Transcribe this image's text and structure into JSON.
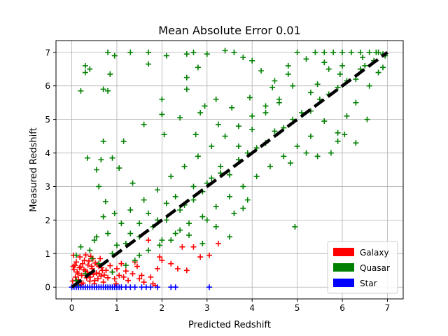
{
  "chart_data": {
    "type": "scatter",
    "title": "Mean Absolute Error 0.01",
    "xlabel": "Predicted Redshift",
    "ylabel": "Measured Redshift",
    "xlim": [
      -0.35,
      7.35
    ],
    "ylim": [
      -0.35,
      7.35
    ],
    "x_ticks": [
      0,
      1,
      2,
      3,
      4,
      5,
      6,
      7
    ],
    "y_ticks": [
      0,
      1,
      2,
      3,
      4,
      5,
      6,
      7
    ],
    "grid": true,
    "marker": "+",
    "legend": {
      "position": "lower-right",
      "entries": [
        {
          "label": "Galaxy",
          "color": "#ff0000"
        },
        {
          "label": "Quasar",
          "color": "#008000"
        },
        {
          "label": "Star",
          "color": "#0000ff"
        }
      ]
    },
    "reference_line": {
      "style": "dashed",
      "color": "#000000",
      "x": [
        0,
        7
      ],
      "y": [
        0,
        7
      ]
    },
    "series": [
      {
        "name": "Galaxy",
        "color": "#ff0000",
        "points": [
          [
            0.02,
            0.18
          ],
          [
            0.05,
            0.52
          ],
          [
            0.08,
            0.3
          ],
          [
            0.1,
            0.75
          ],
          [
            0.12,
            0.45
          ],
          [
            0.15,
            0.22
          ],
          [
            0.18,
            0.9
          ],
          [
            0.2,
            0.6
          ],
          [
            0.22,
            0.35
          ],
          [
            0.25,
            0.12
          ],
          [
            0.28,
            0.8
          ],
          [
            0.3,
            0.48
          ],
          [
            0.33,
            0.28
          ],
          [
            0.36,
            0.66
          ],
          [
            0.4,
            0.18
          ],
          [
            0.42,
            0.92
          ],
          [
            0.45,
            0.55
          ],
          [
            0.48,
            0.38
          ],
          [
            0.5,
            0.1
          ],
          [
            0.52,
            0.72
          ],
          [
            0.55,
            0.42
          ],
          [
            0.58,
            0.25
          ],
          [
            0.6,
            0.62
          ],
          [
            0.63,
            0.85
          ],
          [
            0.65,
            0.33
          ],
          [
            0.68,
            0.5
          ],
          [
            0.7,
            0.15
          ],
          [
            0.04,
            0.95
          ],
          [
            0.07,
            0.65
          ],
          [
            0.11,
            0.05
          ],
          [
            0.14,
            0.4
          ],
          [
            0.17,
            0.58
          ],
          [
            0.21,
            0.08
          ],
          [
            0.24,
            0.7
          ],
          [
            0.27,
            0.52
          ],
          [
            0.31,
            0.96
          ],
          [
            0.35,
            0.45
          ],
          [
            0.38,
            0.78
          ],
          [
            0.41,
            0.3
          ],
          [
            0.44,
            0.62
          ],
          [
            0.47,
            0.85
          ],
          [
            0.51,
            0.2
          ],
          [
            0.56,
            0.68
          ],
          [
            0.61,
            0.4
          ],
          [
            0.66,
            0.58
          ],
          [
            0.72,
            0.36
          ],
          [
            0.76,
            0.5
          ],
          [
            0.8,
            0.28
          ],
          [
            0.85,
            0.64
          ],
          [
            0.9,
            0.45
          ],
          [
            0.95,
            0.25
          ],
          [
            1.0,
            0.55
          ],
          [
            1.05,
            0.35
          ],
          [
            1.1,
            0.7
          ],
          [
            1.15,
            0.3
          ],
          [
            1.2,
            0.48
          ],
          [
            1.25,
            0.2
          ],
          [
            1.35,
            0.4
          ],
          [
            1.45,
            0.62
          ],
          [
            1.55,
            0.35
          ],
          [
            1.6,
            0.15
          ],
          [
            1.75,
            0.3
          ],
          [
            1.8,
            0.1
          ],
          [
            1.9,
            0.55
          ],
          [
            2.0,
            0.8
          ],
          [
            2.2,
            0.7
          ],
          [
            2.35,
            0.55
          ],
          [
            2.55,
            0.5
          ],
          [
            2.7,
            1.2
          ],
          [
            2.85,
            0.9
          ],
          [
            3.25,
            1.3
          ],
          [
            3.05,
            0.95
          ],
          [
            1.7,
            1.4
          ],
          [
            2.45,
            1.2
          ],
          [
            1.95,
            0.9
          ],
          [
            1.5,
            0.25
          ],
          [
            1.4,
            0.75
          ],
          [
            1.85,
            0.05
          ],
          [
            0.98,
            0.1
          ],
          [
            0.03,
            0.62
          ]
        ]
      },
      {
        "name": "Quasar",
        "color": "#008000",
        "points": [
          [
            0.3,
            6.6
          ],
          [
            0.4,
            6.5
          ],
          [
            0.3,
            6.4
          ],
          [
            0.2,
            5.85
          ],
          [
            0.7,
            5.9
          ],
          [
            0.8,
            5.85
          ],
          [
            0.85,
            6.35
          ],
          [
            0.8,
            7.0
          ],
          [
            0.95,
            6.9
          ],
          [
            1.3,
            7.0
          ],
          [
            1.7,
            7.0
          ],
          [
            2.1,
            6.9
          ],
          [
            2.55,
            6.95
          ],
          [
            2.7,
            7.0
          ],
          [
            3.0,
            6.95
          ],
          [
            3.4,
            7.05
          ],
          [
            3.6,
            7.0
          ],
          [
            3.8,
            6.85
          ],
          [
            4.0,
            6.75
          ],
          [
            4.2,
            6.45
          ],
          [
            4.5,
            6.15
          ],
          [
            4.8,
            6.6
          ],
          [
            2.55,
            6.25
          ],
          [
            2.8,
            6.55
          ],
          [
            1.7,
            6.65
          ],
          [
            0.7,
            4.35
          ],
          [
            0.35,
            3.85
          ],
          [
            0.55,
            3.5
          ],
          [
            0.9,
            3.85
          ],
          [
            0.65,
            3.8
          ],
          [
            1.15,
            4.35
          ],
          [
            1.6,
            4.85
          ],
          [
            2.05,
            4.55
          ],
          [
            2.4,
            5.05
          ],
          [
            2.75,
            4.55
          ],
          [
            3.25,
            4.85
          ],
          [
            2.95,
            5.4
          ],
          [
            2.55,
            5.9
          ],
          [
            2.0,
            5.6
          ],
          [
            2.0,
            5.15
          ],
          [
            0.6,
            3.0
          ],
          [
            0.7,
            2.1
          ],
          [
            0.55,
            1.5
          ],
          [
            1.0,
            1.25
          ],
          [
            1.3,
            1.6
          ],
          [
            1.5,
            1.9
          ],
          [
            1.7,
            2.2
          ],
          [
            1.9,
            2.0
          ],
          [
            2.1,
            2.5
          ],
          [
            2.3,
            2.7
          ],
          [
            2.5,
            2.45
          ],
          [
            2.7,
            3.0
          ],
          [
            2.9,
            2.85
          ],
          [
            3.1,
            3.25
          ],
          [
            3.3,
            3.4
          ],
          [
            3.5,
            3.35
          ],
          [
            3.7,
            3.8
          ],
          [
            3.9,
            4.0
          ],
          [
            4.1,
            4.15
          ],
          [
            4.3,
            4.3
          ],
          [
            4.5,
            4.65
          ],
          [
            4.7,
            4.75
          ],
          [
            4.9,
            5.0
          ],
          [
            5.1,
            5.2
          ],
          [
            5.3,
            5.25
          ],
          [
            5.5,
            5.6
          ],
          [
            5.7,
            5.75
          ],
          [
            5.9,
            5.95
          ],
          [
            6.1,
            6.15
          ],
          [
            6.3,
            6.2
          ],
          [
            6.5,
            6.6
          ],
          [
            6.7,
            6.75
          ],
          [
            6.9,
            6.95
          ],
          [
            6.0,
            7.0
          ],
          [
            6.2,
            7.0
          ],
          [
            6.4,
            7.0
          ],
          [
            6.6,
            7.0
          ],
          [
            6.8,
            7.0
          ],
          [
            5.8,
            7.0
          ],
          [
            5.6,
            7.0
          ],
          [
            5.4,
            7.0
          ],
          [
            5.0,
            7.0
          ],
          [
            5.2,
            6.8
          ],
          [
            5.6,
            6.7
          ],
          [
            6.0,
            6.6
          ],
          [
            6.4,
            6.5
          ],
          [
            6.8,
            6.4
          ],
          [
            6.6,
            6.0
          ],
          [
            6.3,
            5.5
          ],
          [
            6.1,
            5.1
          ],
          [
            5.9,
            4.6
          ],
          [
            5.6,
            4.95
          ],
          [
            5.3,
            5.8
          ],
          [
            4.9,
            6.0
          ],
          [
            4.6,
            5.5
          ],
          [
            4.3,
            5.2
          ],
          [
            4.0,
            4.7
          ],
          [
            3.7,
            4.2
          ],
          [
            3.3,
            3.6
          ],
          [
            3.0,
            3.1
          ],
          [
            2.7,
            2.6
          ],
          [
            2.4,
            2.3
          ],
          [
            2.1,
            2.0
          ],
          [
            1.8,
            1.8
          ],
          [
            1.5,
            1.5
          ],
          [
            1.2,
            1.3
          ],
          [
            0.9,
            1.0
          ],
          [
            0.6,
            0.7
          ],
          [
            0.3,
            0.4
          ],
          [
            0.1,
            0.2
          ],
          [
            0.2,
            1.2
          ],
          [
            0.4,
            1.1
          ],
          [
            0.1,
            0.95
          ],
          [
            0.5,
            1.4
          ],
          [
            0.8,
            1.6
          ],
          [
            1.1,
            1.9
          ],
          [
            1.3,
            2.3
          ],
          [
            1.6,
            2.6
          ],
          [
            1.9,
            2.9
          ],
          [
            2.2,
            3.3
          ],
          [
            2.5,
            3.6
          ],
          [
            2.8,
            3.9
          ],
          [
            3.1,
            4.2
          ],
          [
            3.4,
            4.5
          ],
          [
            3.7,
            4.8
          ],
          [
            4.0,
            5.1
          ],
          [
            4.3,
            5.4
          ],
          [
            4.6,
            5.6
          ],
          [
            1.4,
            0.8
          ],
          [
            1.7,
            1.1
          ],
          [
            2.0,
            1.4
          ],
          [
            2.3,
            1.6
          ],
          [
            2.6,
            1.9
          ],
          [
            2.9,
            2.1
          ],
          [
            3.2,
            2.4
          ],
          [
            3.5,
            2.7
          ],
          [
            3.8,
            3.0
          ],
          [
            4.1,
            3.3
          ],
          [
            4.4,
            3.6
          ],
          [
            4.7,
            3.9
          ],
          [
            5.0,
            4.2
          ],
          [
            5.3,
            4.5
          ],
          [
            3.0,
            2.0
          ],
          [
            3.2,
            1.8
          ],
          [
            3.6,
            2.2
          ],
          [
            3.9,
            2.6
          ],
          [
            3.5,
            1.5
          ],
          [
            4.95,
            1.8
          ],
          [
            3.8,
            2.35
          ],
          [
            2.6,
            1.55
          ],
          [
            2.9,
            1.3
          ],
          [
            2.4,
            1.7
          ],
          [
            2.2,
            1.4
          ],
          [
            1.95,
            1.25
          ],
          [
            0.9,
            0.45
          ],
          [
            1.2,
            0.65
          ],
          [
            1.5,
            0.95
          ],
          [
            0.15,
            0.05
          ],
          [
            0.45,
            0.85
          ],
          [
            5.9,
            4.35
          ],
          [
            6.05,
            4.55
          ],
          [
            5.75,
            4.0
          ],
          [
            5.45,
            3.9
          ],
          [
            5.2,
            4.0
          ],
          [
            4.85,
            3.7
          ],
          [
            6.3,
            4.3
          ],
          [
            6.55,
            5.0
          ],
          [
            6.9,
            6.55
          ],
          [
            6.95,
            6.9
          ],
          [
            6.75,
            7.0
          ],
          [
            6.45,
            6.85
          ],
          [
            5.95,
            6.35
          ],
          [
            5.45,
            6.05
          ],
          [
            5.7,
            6.5
          ],
          [
            4.45,
            5.95
          ],
          [
            4.8,
            6.35
          ],
          [
            3.95,
            5.65
          ],
          [
            3.55,
            5.35
          ],
          [
            3.2,
            5.6
          ],
          [
            2.85,
            5.2
          ],
          [
            1.35,
            3.1
          ],
          [
            1.05,
            3.55
          ],
          [
            0.75,
            2.55
          ],
          [
            0.95,
            2.2
          ]
        ]
      },
      {
        "name": "Star",
        "color": "#0000ff",
        "points": [
          [
            0.0,
            0.0
          ],
          [
            0.05,
            0.0
          ],
          [
            0.1,
            0.0
          ],
          [
            0.15,
            0.0
          ],
          [
            0.2,
            0.0
          ],
          [
            0.25,
            0.0
          ],
          [
            0.3,
            0.0
          ],
          [
            0.35,
            0.0
          ],
          [
            0.4,
            0.0
          ],
          [
            0.45,
            0.0
          ],
          [
            0.5,
            0.0
          ],
          [
            0.55,
            0.0
          ],
          [
            0.6,
            0.0
          ],
          [
            0.65,
            0.0
          ],
          [
            0.7,
            0.0
          ],
          [
            0.75,
            0.0
          ],
          [
            0.8,
            0.0
          ],
          [
            0.85,
            0.0
          ],
          [
            0.9,
            0.0
          ],
          [
            0.95,
            0.0
          ],
          [
            1.0,
            0.0
          ],
          [
            1.05,
            0.0
          ],
          [
            1.1,
            0.0
          ],
          [
            1.2,
            0.0
          ],
          [
            1.3,
            0.0
          ],
          [
            1.4,
            0.0
          ],
          [
            1.55,
            0.0
          ],
          [
            1.65,
            0.0
          ],
          [
            1.75,
            0.0
          ],
          [
            1.9,
            0.0
          ],
          [
            2.2,
            0.0
          ],
          [
            2.3,
            0.0
          ],
          [
            3.05,
            0.0
          ]
        ]
      }
    ]
  }
}
